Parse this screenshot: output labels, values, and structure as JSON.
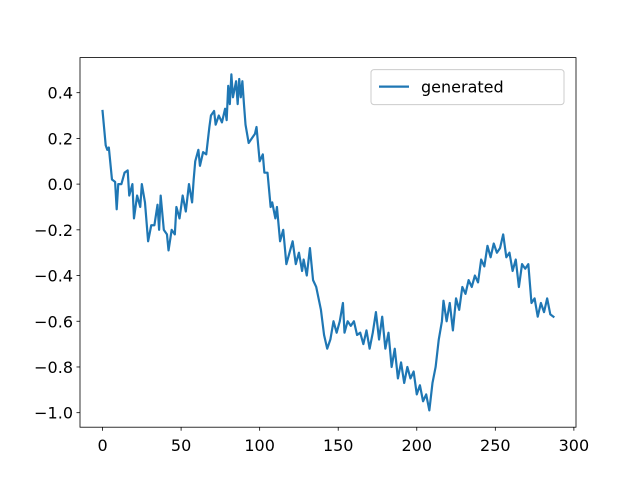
{
  "chart_data": {
    "type": "line",
    "x": [
      0,
      2,
      3,
      4,
      6,
      8,
      9,
      10,
      12,
      14,
      16,
      17,
      19,
      20,
      22,
      24,
      25,
      27,
      29,
      31,
      33,
      35,
      36,
      37,
      39,
      41,
      42,
      44,
      46,
      47,
      49,
      51,
      53,
      55,
      57,
      58,
      59,
      61,
      62,
      64,
      66,
      68,
      69,
      71,
      72,
      74,
      76,
      78,
      79,
      80,
      81,
      82,
      83,
      85,
      86,
      87,
      88,
      89,
      90,
      91,
      93,
      95,
      97,
      98,
      100,
      102,
      103,
      105,
      107,
      108,
      110,
      111,
      113,
      115,
      117,
      119,
      121,
      123,
      125,
      127,
      128,
      130,
      132,
      134,
      136,
      139,
      141,
      143,
      145,
      147,
      149,
      151,
      153,
      154,
      156,
      158,
      160,
      162,
      164,
      166,
      168,
      170,
      172,
      174,
      176,
      178,
      180,
      182,
      184,
      186,
      188,
      190,
      192,
      194,
      196,
      198,
      200,
      202,
      204,
      206,
      208,
      210,
      212,
      214,
      216,
      217,
      219,
      221,
      223,
      225,
      227,
      229,
      231,
      233,
      235,
      237,
      239,
      241,
      243,
      245,
      247,
      249,
      251,
      253,
      255,
      257,
      259,
      261,
      263,
      265,
      267,
      269,
      271,
      273,
      275,
      277,
      279,
      281,
      283,
      285,
      287
    ],
    "series": [
      {
        "name": "generated",
        "color": "#1f77b4",
        "values": [
          0.32,
          0.17,
          0.15,
          0.16,
          0.02,
          0.01,
          -0.11,
          0.0,
          0.0,
          0.05,
          0.06,
          -0.05,
          0.0,
          -0.15,
          -0.05,
          -0.1,
          0.0,
          -0.08,
          -0.25,
          -0.18,
          -0.18,
          -0.09,
          -0.2,
          -0.05,
          -0.2,
          -0.22,
          -0.29,
          -0.2,
          -0.22,
          -0.1,
          -0.15,
          -0.05,
          -0.12,
          0.0,
          -0.08,
          0.02,
          0.1,
          0.15,
          0.08,
          0.14,
          0.13,
          0.25,
          0.3,
          0.32,
          0.26,
          0.3,
          0.27,
          0.33,
          0.28,
          0.43,
          0.35,
          0.48,
          0.38,
          0.45,
          0.35,
          0.46,
          0.38,
          0.45,
          0.35,
          0.26,
          0.18,
          0.2,
          0.22,
          0.25,
          0.1,
          0.13,
          0.05,
          0.05,
          -0.1,
          -0.08,
          -0.15,
          -0.1,
          -0.25,
          -0.2,
          -0.35,
          -0.3,
          -0.25,
          -0.35,
          -0.3,
          -0.38,
          -0.33,
          -0.4,
          -0.28,
          -0.42,
          -0.45,
          -0.55,
          -0.66,
          -0.72,
          -0.68,
          -0.6,
          -0.65,
          -0.6,
          -0.52,
          -0.65,
          -0.6,
          -0.62,
          -0.6,
          -0.66,
          -0.65,
          -0.7,
          -0.64,
          -0.72,
          -0.65,
          -0.56,
          -0.68,
          -0.58,
          -0.72,
          -0.65,
          -0.8,
          -0.72,
          -0.85,
          -0.78,
          -0.87,
          -0.8,
          -0.85,
          -0.82,
          -0.92,
          -0.88,
          -0.95,
          -0.92,
          -0.99,
          -0.87,
          -0.8,
          -0.68,
          -0.6,
          -0.51,
          -0.6,
          -0.52,
          -0.64,
          -0.5,
          -0.55,
          -0.45,
          -0.48,
          -0.42,
          -0.45,
          -0.4,
          -0.43,
          -0.33,
          -0.36,
          -0.27,
          -0.32,
          -0.26,
          -0.3,
          -0.28,
          -0.22,
          -0.32,
          -0.3,
          -0.38,
          -0.33,
          -0.45,
          -0.35,
          -0.37,
          -0.35,
          -0.52,
          -0.5,
          -0.58,
          -0.52,
          -0.56,
          -0.5,
          -0.57,
          -0.58
        ]
      }
    ],
    "xlim": [
      -14.35,
      301.35
    ],
    "xticks": [
      0,
      50,
      100,
      150,
      200,
      250,
      300
    ],
    "ylim": [
      -1.0635,
      0.5535
    ],
    "yticks": [
      {
        "value": -1.0,
        "label": "−1.0"
      },
      {
        "value": -0.8,
        "label": "−0.8"
      },
      {
        "value": -0.6,
        "label": "−0.6"
      },
      {
        "value": -0.4,
        "label": "−0.4"
      },
      {
        "value": -0.2,
        "label": "−0.2"
      },
      {
        "value": 0.0,
        "label": "0.0"
      },
      0.2,
      0.4
    ],
    "legend": "upper right"
  }
}
